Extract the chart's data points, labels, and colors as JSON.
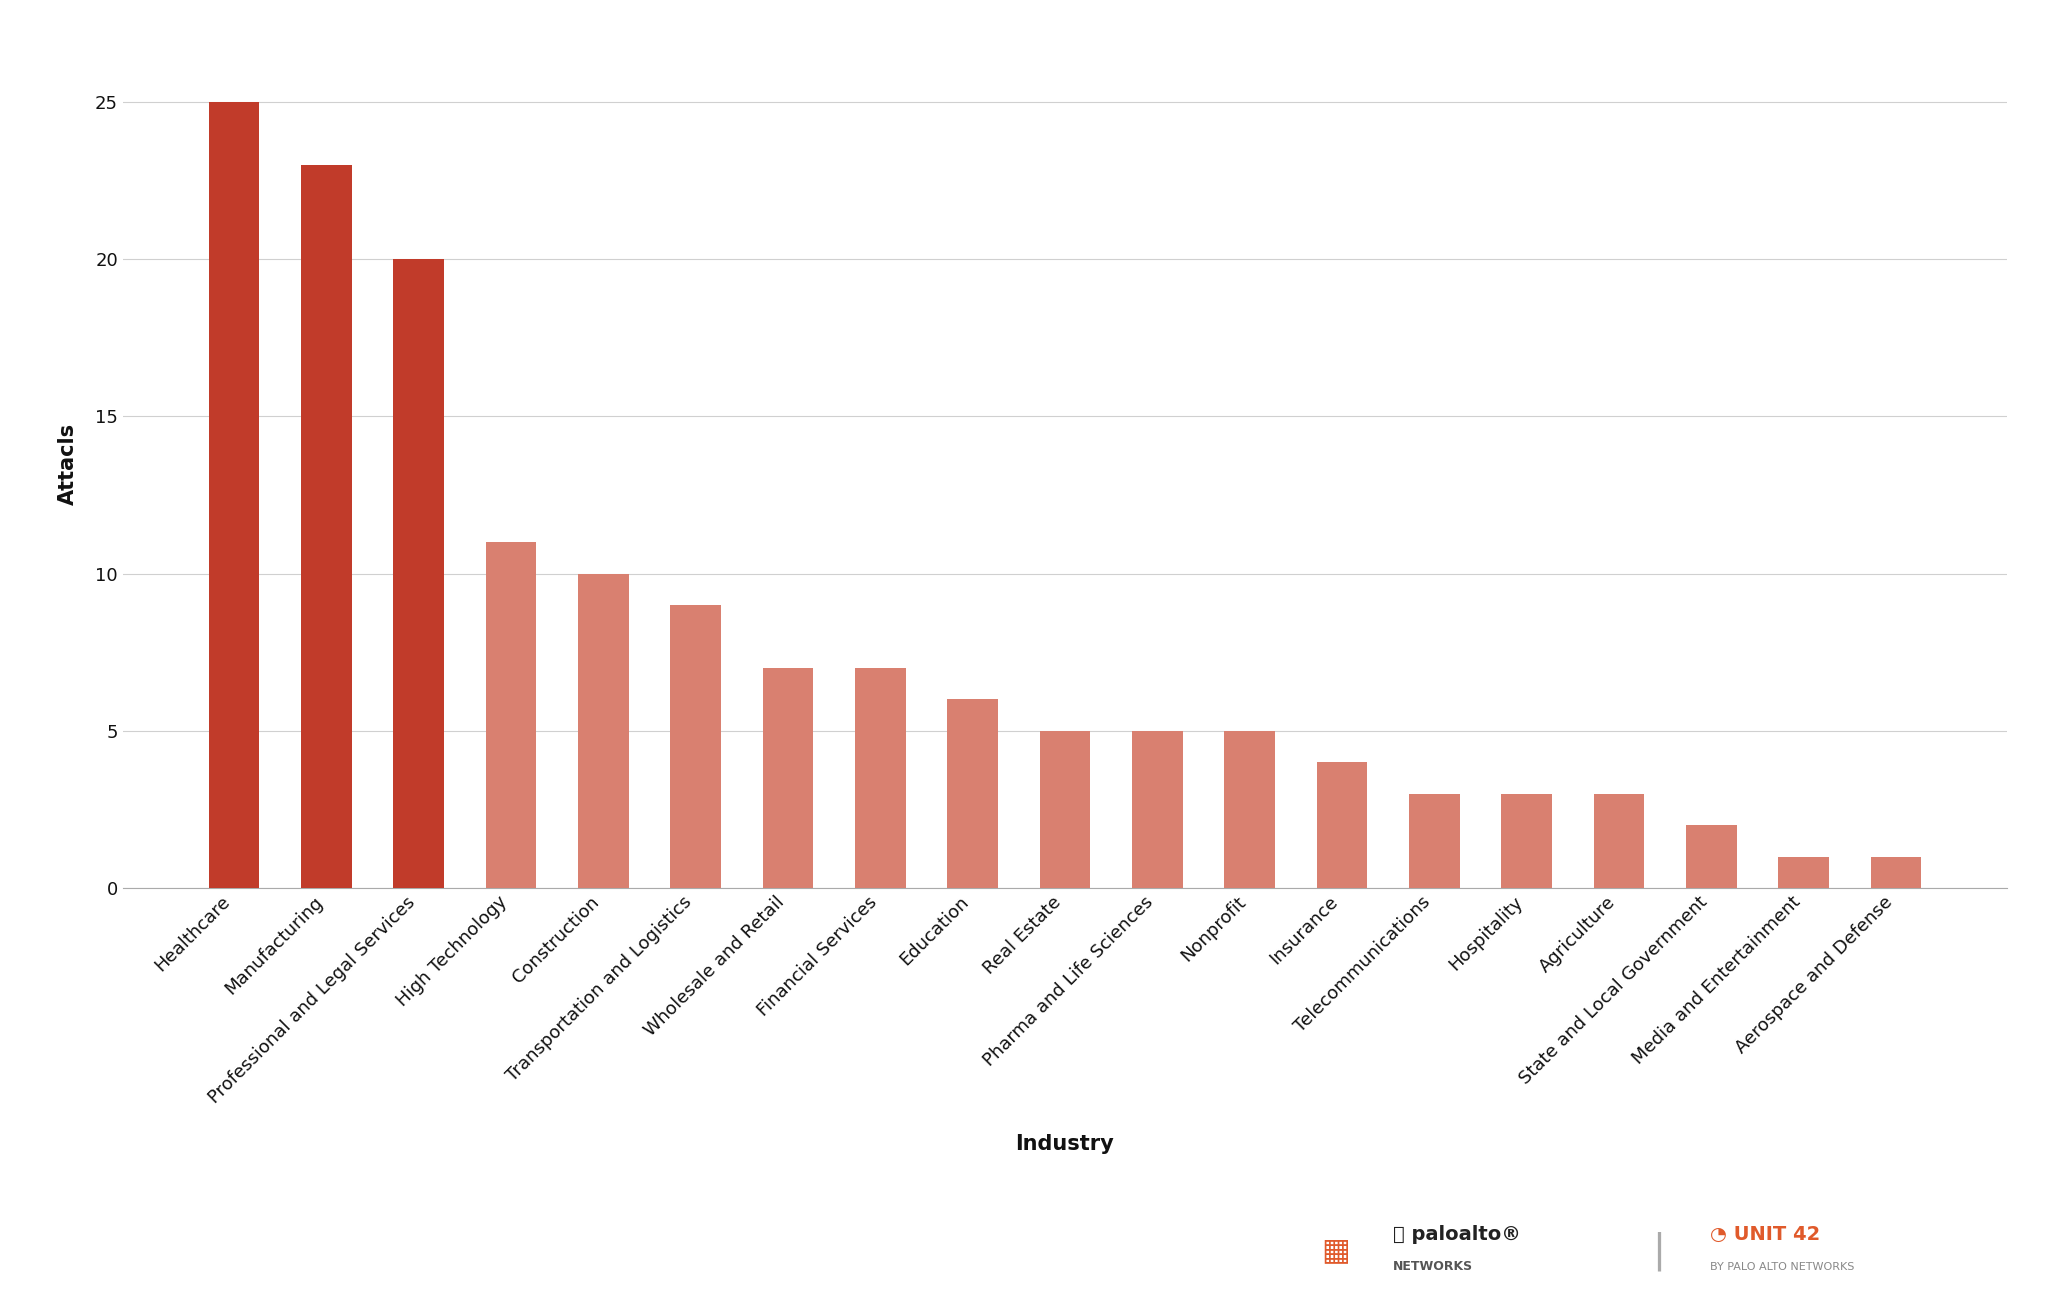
{
  "categories": [
    "Healthcare",
    "Manufacturing",
    "Professional and Legal Services",
    "High Technology",
    "Construction",
    "Transportation and Logistics",
    "Wholesale and Retail",
    "Financial Services",
    "Education",
    "Real Estate",
    "Pharma and Life Sciences",
    "Nonprofit",
    "Insurance",
    "Telecommunications",
    "Hospitality",
    "Agriculture",
    "State and Local Government",
    "Media and Entertainment",
    "Aerospace and Defense"
  ],
  "values": [
    25,
    23,
    20,
    11,
    10,
    9,
    7,
    7,
    6,
    5,
    5,
    5,
    4,
    3,
    3,
    3,
    2,
    1,
    1
  ],
  "bar_colors": [
    "#C13B2A",
    "#C13B2A",
    "#C13B2A",
    "#D98070",
    "#D98070",
    "#D98070",
    "#D98070",
    "#D98070",
    "#D98070",
    "#D98070",
    "#D98070",
    "#D98070",
    "#D98070",
    "#D98070",
    "#D98070",
    "#D98070",
    "#D98070",
    "#D98070",
    "#D98070"
  ],
  "ylabel": "Attacls",
  "xlabel": "Industry",
  "ylim": [
    0,
    27
  ],
  "yticks": [
    0,
    5,
    10,
    15,
    20,
    25
  ],
  "background_color": "#ffffff",
  "grid_color": "#d0d0d0",
  "font_color": "#111111",
  "axis_label_fontsize": 15,
  "tick_fontsize": 13,
  "bar_width": 0.55
}
